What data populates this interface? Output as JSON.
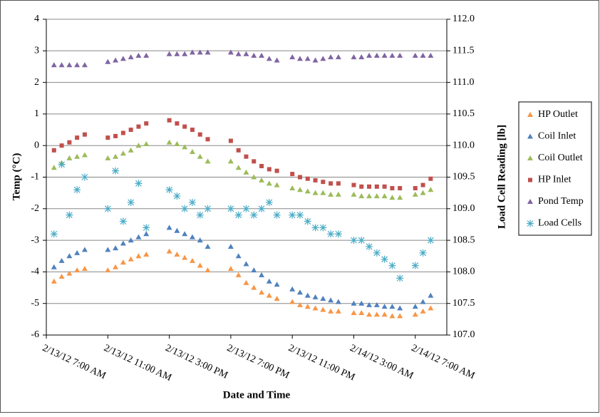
{
  "chart_data": {
    "type": "scatter",
    "x_label": "Date and Time",
    "y_label": "Temp (°C)",
    "y2_label": "Load Cell Reading [lb]",
    "x": [
      "2012-02-13T07:30",
      "2012-02-13T08:00",
      "2012-02-13T08:30",
      "2012-02-13T09:00",
      "2012-02-13T09:30",
      "2012-02-13T11:00",
      "2012-02-13T11:30",
      "2012-02-13T12:00",
      "2012-02-13T12:30",
      "2012-02-13T13:00",
      "2012-02-13T13:30",
      "2012-02-13T15:00",
      "2012-02-13T15:30",
      "2012-02-13T16:00",
      "2012-02-13T16:30",
      "2012-02-13T17:00",
      "2012-02-13T17:30",
      "2012-02-13T19:00",
      "2012-02-13T19:30",
      "2012-02-13T20:00",
      "2012-02-13T20:30",
      "2012-02-13T21:00",
      "2012-02-13T21:30",
      "2012-02-13T22:00",
      "2012-02-13T23:00",
      "2012-02-13T23:30",
      "2012-02-14T00:00",
      "2012-02-14T00:30",
      "2012-02-14T01:00",
      "2012-02-14T01:30",
      "2012-02-14T02:00",
      "2012-02-14T03:00",
      "2012-02-14T03:30",
      "2012-02-14T04:00",
      "2012-02-14T04:30",
      "2012-02-14T05:00",
      "2012-02-14T05:30",
      "2012-02-14T06:00",
      "2012-02-14T07:00",
      "2012-02-14T07:30",
      "2012-02-14T08:00"
    ],
    "xlim": [
      "2012-02-13T07:00",
      "2012-02-14T09:03"
    ],
    "xticks": [
      {
        "value": "2012-02-13T07:00",
        "label": "2/13/12 7:00 AM"
      },
      {
        "value": "2012-02-13T11:00",
        "label": "2/13/12 11:00 AM"
      },
      {
        "value": "2012-02-13T15:00",
        "label": "2/13/12 3:00 PM"
      },
      {
        "value": "2012-02-13T19:00",
        "label": "2/13/12 7:00 PM"
      },
      {
        "value": "2012-02-13T23:00",
        "label": "2/13/12 11:00 PM"
      },
      {
        "value": "2012-02-14T03:00",
        "label": "2/14/12 3:00 AM"
      },
      {
        "value": "2012-02-14T07:00",
        "label": "2/14/12 7:00 AM"
      }
    ],
    "ylim": [
      -6,
      4
    ],
    "yticks": [
      -6,
      -5,
      -4,
      -3,
      -2,
      -1,
      0,
      1,
      2,
      3,
      4
    ],
    "y2lim": [
      107,
      112
    ],
    "y2ticks": [
      {
        "value": 107,
        "label": "107.0"
      },
      {
        "value": 107.5,
        "label": "107.5"
      },
      {
        "value": 108,
        "label": "108.0"
      },
      {
        "value": 108.5,
        "label": "108.5"
      },
      {
        "value": 109,
        "label": "109.0"
      },
      {
        "value": 109.5,
        "label": "109.5"
      },
      {
        "value": 110,
        "label": "110.0"
      },
      {
        "value": 110.5,
        "label": "110.5"
      },
      {
        "value": 111,
        "label": "111.0"
      },
      {
        "value": 111.5,
        "label": "111.5"
      },
      {
        "value": 112,
        "label": "112.0"
      }
    ],
    "grid": true,
    "legend": "right",
    "series": [
      {
        "name": "HP Outlet",
        "color": "#f79646",
        "marker": "triangle",
        "values": [
          -4.3,
          -4.15,
          -4.05,
          -3.95,
          -3.9,
          -3.95,
          -3.85,
          -3.7,
          -3.6,
          -3.5,
          -3.45,
          -3.35,
          -3.45,
          -3.55,
          -3.65,
          -3.8,
          -3.95,
          -3.9,
          -4.1,
          -4.35,
          -4.5,
          -4.65,
          -4.75,
          -4.85,
          -4.95,
          -5.05,
          -5.1,
          -5.15,
          -5.2,
          -5.25,
          -5.25,
          -5.3,
          -5.3,
          -5.35,
          -5.35,
          -5.35,
          -5.4,
          -5.4,
          -5.35,
          -5.25,
          -5.15
        ]
      },
      {
        "name": "Coil Inlet",
        "color": "#4f81bd",
        "marker": "triangle",
        "values": [
          -3.85,
          -3.65,
          -3.5,
          -3.4,
          -3.3,
          -3.3,
          -3.25,
          -3.1,
          -3.0,
          -2.9,
          -2.8,
          -2.6,
          -2.7,
          -2.8,
          -2.9,
          -3.0,
          -3.2,
          -3.2,
          -3.5,
          -3.75,
          -3.95,
          -4.1,
          -4.3,
          -4.4,
          -4.55,
          -4.65,
          -4.75,
          -4.8,
          -4.85,
          -4.9,
          -4.95,
          -5.0,
          -5.0,
          -5.05,
          -5.05,
          -5.1,
          -5.1,
          -5.15,
          -5.1,
          -4.95,
          -4.75
        ]
      },
      {
        "name": "Coil Outlet",
        "color": "#9bbb59",
        "marker": "triangle",
        "values": [
          -0.7,
          -0.55,
          -0.4,
          -0.35,
          -0.3,
          -0.4,
          -0.35,
          -0.25,
          -0.15,
          0.0,
          0.05,
          0.1,
          0.05,
          -0.05,
          -0.2,
          -0.35,
          -0.5,
          -0.5,
          -0.7,
          -0.85,
          -1.0,
          -1.1,
          -1.2,
          -1.25,
          -1.35,
          -1.4,
          -1.45,
          -1.5,
          -1.5,
          -1.55,
          -1.55,
          -1.55,
          -1.6,
          -1.6,
          -1.6,
          -1.6,
          -1.65,
          -1.65,
          -1.55,
          -1.5,
          -1.4
        ]
      },
      {
        "name": "HP Inlet",
        "color": "#c0504d",
        "marker": "square",
        "values": [
          -0.15,
          0.0,
          0.1,
          0.25,
          0.35,
          0.25,
          0.3,
          0.4,
          0.5,
          0.6,
          0.7,
          0.8,
          0.7,
          0.6,
          0.5,
          0.35,
          0.2,
          0.15,
          -0.15,
          -0.35,
          -0.5,
          -0.65,
          -0.75,
          -0.8,
          -0.9,
          -1.0,
          -1.05,
          -1.1,
          -1.15,
          -1.2,
          -1.2,
          -1.25,
          -1.3,
          -1.3,
          -1.3,
          -1.3,
          -1.35,
          -1.35,
          -1.35,
          -1.25,
          -1.05
        ]
      },
      {
        "name": "Pond Temp",
        "color": "#8064a2",
        "marker": "triangle",
        "values": [
          2.55,
          2.55,
          2.55,
          2.55,
          2.55,
          2.65,
          2.7,
          2.75,
          2.8,
          2.85,
          2.85,
          2.9,
          2.9,
          2.9,
          2.95,
          2.95,
          2.95,
          2.95,
          2.9,
          2.9,
          2.85,
          2.85,
          2.75,
          2.7,
          2.8,
          2.75,
          2.75,
          2.7,
          2.75,
          2.8,
          2.8,
          2.8,
          2.8,
          2.85,
          2.85,
          2.85,
          2.85,
          2.85,
          2.85,
          2.85,
          2.85
        ]
      },
      {
        "name": "Load Cells",
        "color": "#4bacc6",
        "marker": "asterisk",
        "axis": "y2",
        "values": [
          108.6,
          109.7,
          108.9,
          109.3,
          109.5,
          109.0,
          109.6,
          108.8,
          109.1,
          109.4,
          108.7,
          109.3,
          109.2,
          109.0,
          109.1,
          108.9,
          109.0,
          109.0,
          108.9,
          109.0,
          108.9,
          109.0,
          109.1,
          108.9,
          108.9,
          108.9,
          108.8,
          108.7,
          108.7,
          108.6,
          108.6,
          108.5,
          108.5,
          108.4,
          108.3,
          108.2,
          108.1,
          107.9,
          108.1,
          108.3,
          108.5
        ]
      }
    ]
  }
}
